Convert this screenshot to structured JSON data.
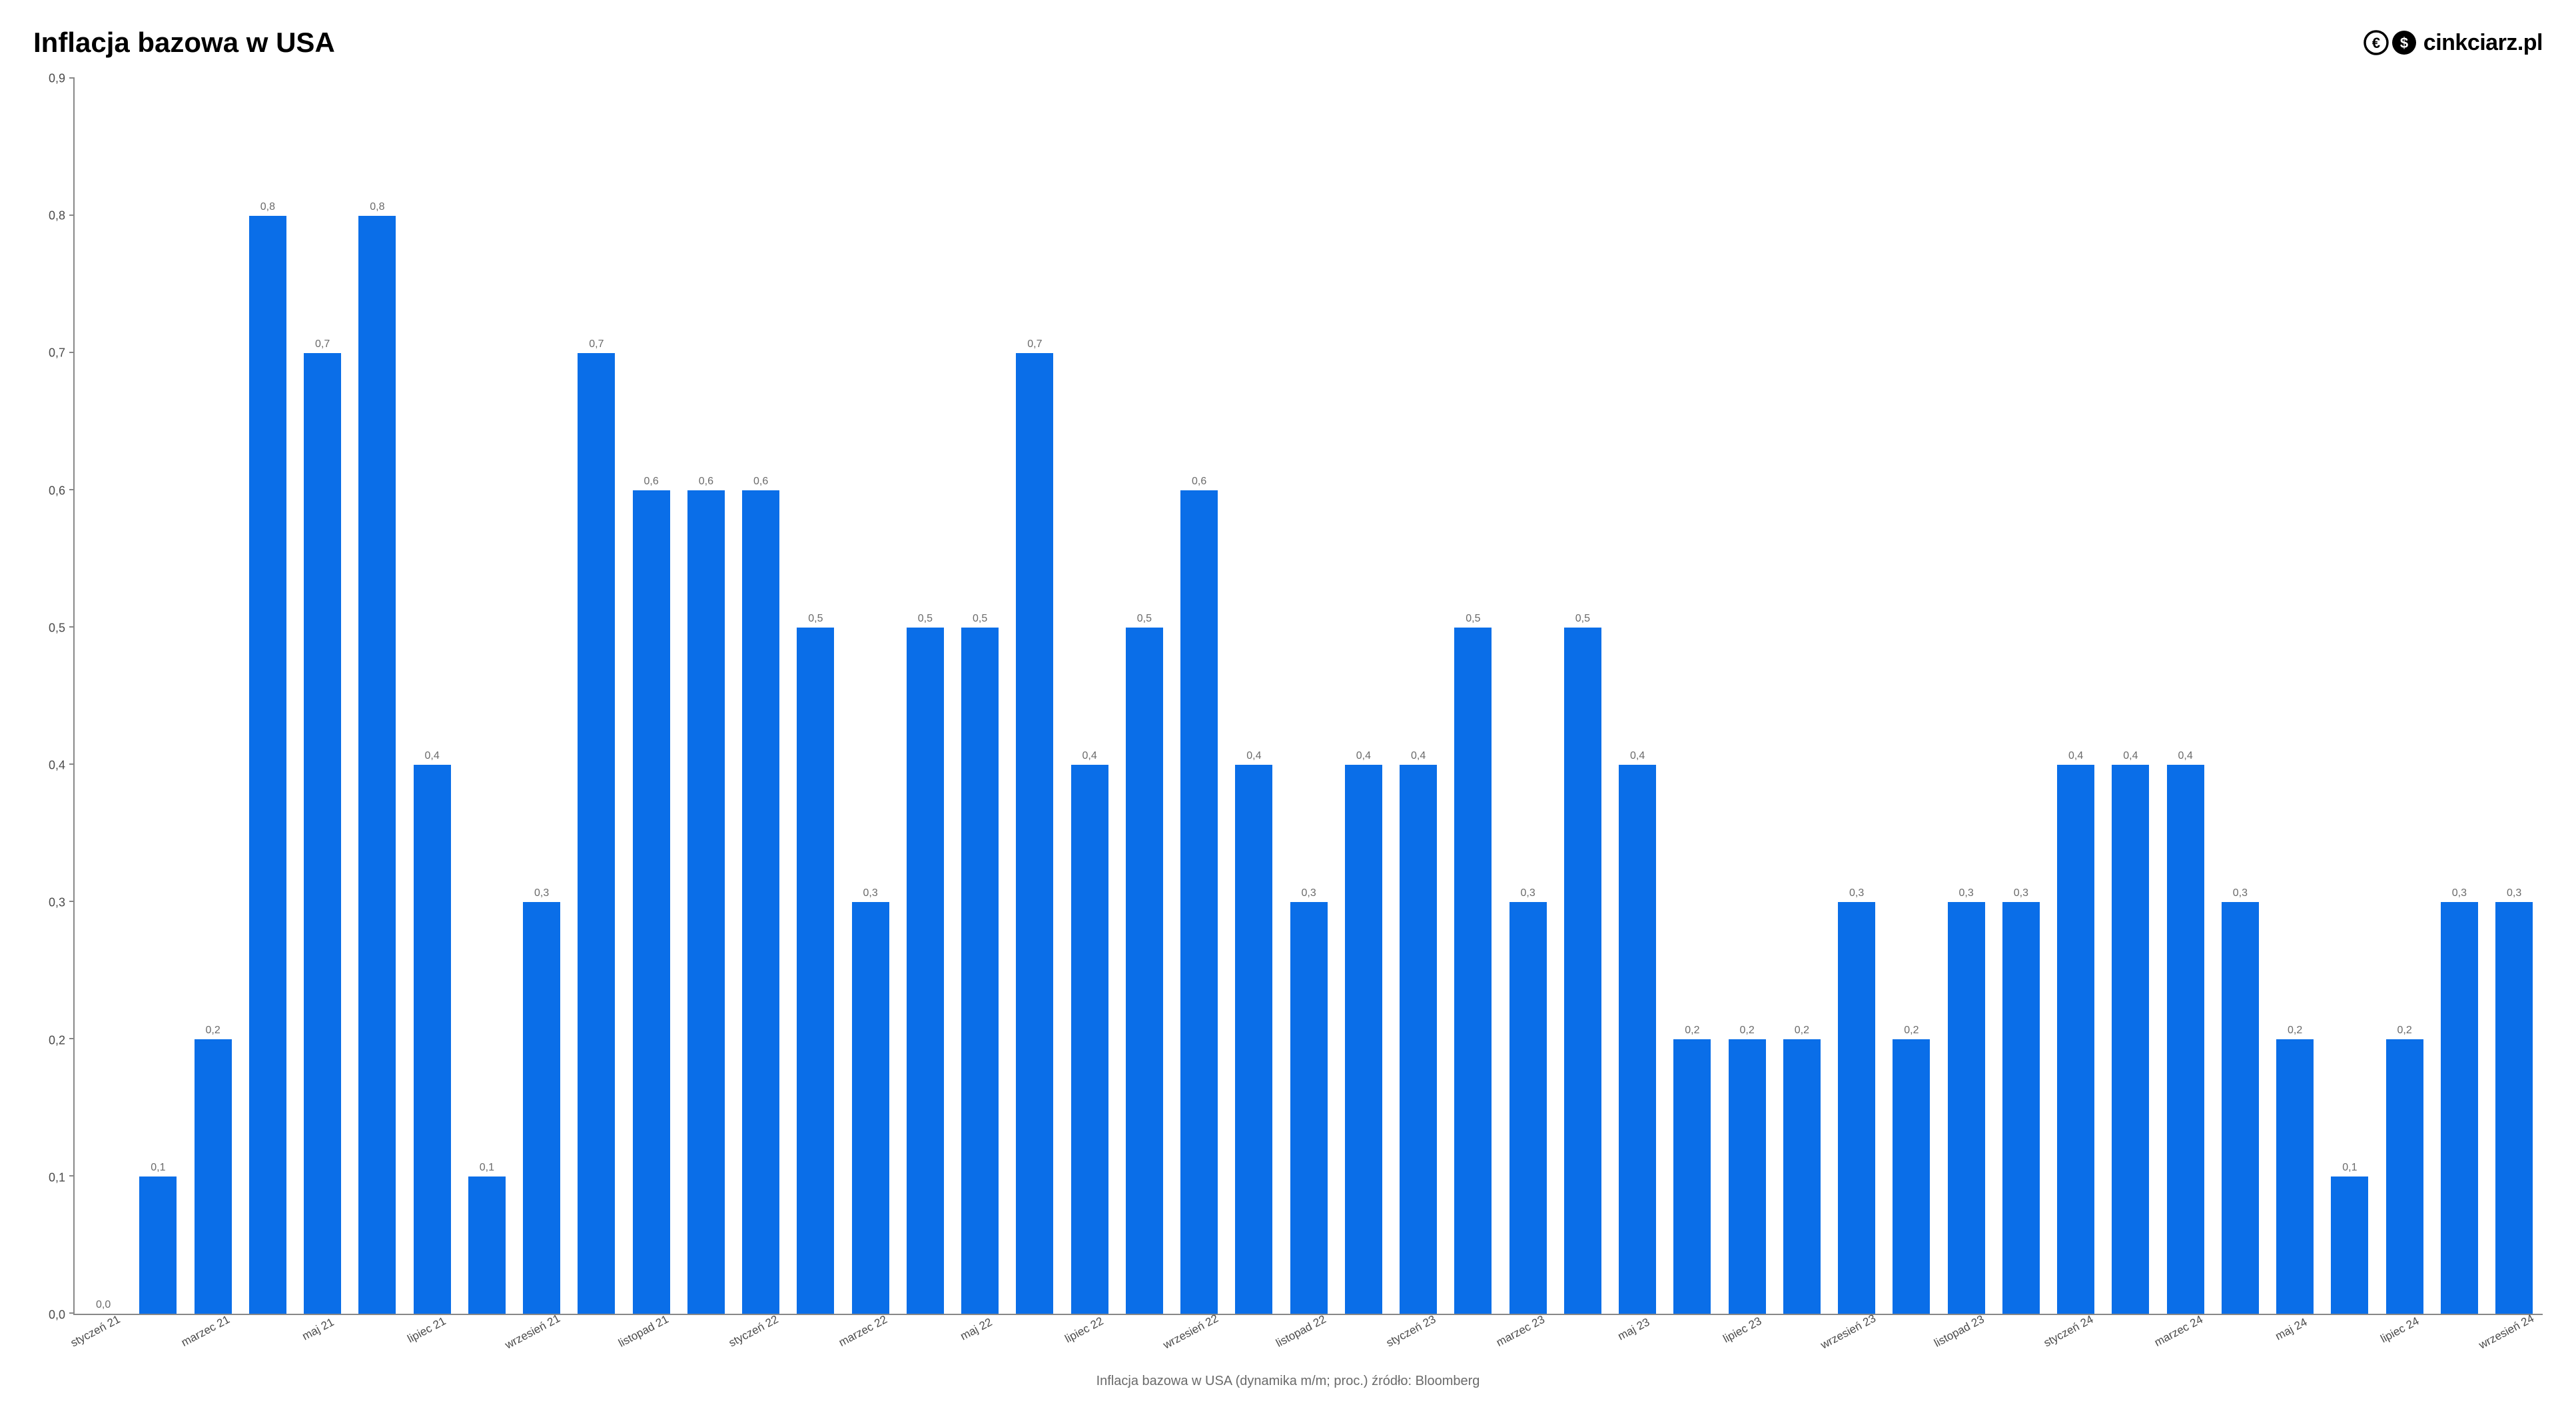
{
  "title": "Inflacja bazowa w USA",
  "logo": {
    "text": "cinkciarz.pl",
    "icon_euro": "€",
    "icon_dollar": "$",
    "icon_color": "#000000"
  },
  "caption": "Inflacja bazowa w USA (dynamika m/m; proc.) źródło: Bloomberg",
  "chart": {
    "type": "bar",
    "bar_color": "#0a6ee8",
    "background_color": "#ffffff",
    "axis_color": "#888888",
    "tick_label_color": "#4a4a4a",
    "value_label_color": "#6a6a6a",
    "title_fontsize": 42,
    "tick_fontsize": 18,
    "value_label_fontsize": 16,
    "x_label_fontsize": 17,
    "x_label_rotation_deg": -28,
    "caption_fontsize": 20,
    "bar_width_ratio": 0.68,
    "ylim": [
      0.0,
      0.9
    ],
    "ytick_step": 0.1,
    "yticks": [
      "0,0",
      "0,1",
      "0,2",
      "0,3",
      "0,4",
      "0,5",
      "0,6",
      "0,7",
      "0,8",
      "0,9"
    ],
    "decimal_separator": ",",
    "x_labels": [
      "styczeń 21",
      "",
      "marzec 21",
      "",
      "maj 21",
      "",
      "lipiec 21",
      "",
      "wrzesień 21",
      "",
      "listopad 21",
      "",
      "styczeń 22",
      "",
      "marzec 22",
      "",
      "maj 22",
      "",
      "lipiec 22",
      "",
      "wrzesień 22",
      "",
      "listopad 22",
      "",
      "styczeń 23",
      "",
      "marzec 23",
      "",
      "maj 23",
      "",
      "lipiec 23",
      "",
      "wrzesień 23",
      "",
      "listopad 23",
      "",
      "styczeń 24",
      "",
      "marzec 24",
      "",
      "maj 24",
      "",
      "lipiec 24",
      "",
      "wrzesień 24"
    ],
    "values": [
      0.0,
      0.1,
      0.2,
      0.8,
      0.7,
      0.8,
      0.4,
      0.1,
      0.3,
      0.7,
      0.6,
      0.6,
      0.6,
      0.5,
      0.3,
      0.5,
      0.5,
      0.7,
      0.4,
      0.5,
      0.6,
      0.4,
      0.3,
      0.4,
      0.4,
      0.5,
      0.3,
      0.5,
      0.4,
      0.2,
      0.2,
      0.2,
      0.3,
      0.2,
      0.3,
      0.3,
      0.4,
      0.4,
      0.4,
      0.3,
      0.2,
      0.1,
      0.2,
      0.3,
      0.3
    ],
    "value_labels": [
      "0,0",
      "0,1",
      "0,2",
      "0,8",
      "0,7",
      "0,8",
      "0,4",
      "0,1",
      "0,3",
      "0,7",
      "0,6",
      "0,6",
      "0,6",
      "0,5",
      "0,3",
      "0,5",
      "0,5",
      "0,7",
      "0,4",
      "0,5",
      "0,6",
      "0,4",
      "0,3",
      "0,4",
      "0,4",
      "0,5",
      "0,3",
      "0,5",
      "0,4",
      "0,2",
      "0,2",
      "0,2",
      "0,3",
      "0,2",
      "0,3",
      "0,3",
      "0,4",
      "0,4",
      "0,4",
      "0,3",
      "0,2",
      "0,1",
      "0,2",
      "0,3",
      "0,3"
    ]
  }
}
